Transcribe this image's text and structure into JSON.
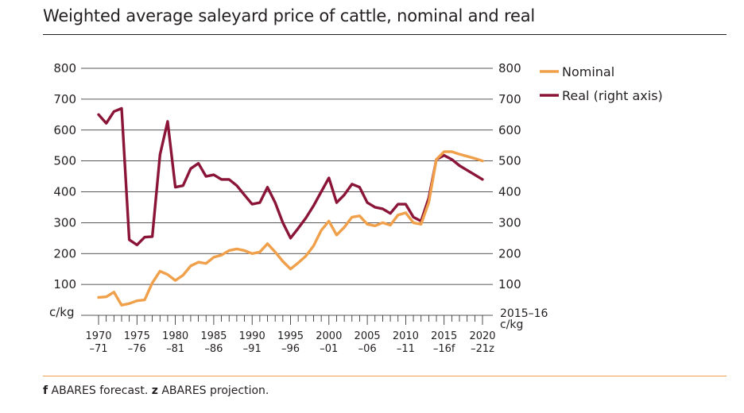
{
  "title": "Weighted average saleyard price of cattle, nominal and real",
  "footnote": {
    "f_mark": "f",
    "f_text": " ABARES forecast. ",
    "z_mark": "z",
    "z_text": " ABARES projection."
  },
  "colors": {
    "nominal": "#f0a04b",
    "real": "#8b1538",
    "grid": "#231f20"
  },
  "chart_data": {
    "type": "line",
    "title": "Weighted average saleyard price of cattle, nominal and real",
    "ylim": [
      0,
      800
    ],
    "y_ticks": [
      100,
      200,
      300,
      400,
      500,
      600,
      700,
      800
    ],
    "y_ticks_right": [
      100,
      200,
      300,
      400,
      500,
      600,
      700,
      800
    ],
    "y_unit_left": "c/kg",
    "y_unit_right_line1": "2015–16",
    "y_unit_right_line2": "c/kg",
    "grid": true,
    "legend_position": "top-right",
    "x_tick_labels": [
      {
        "year": 1970,
        "top": "1970",
        "bottom": "–71"
      },
      {
        "year": 1975,
        "top": "1975",
        "bottom": "–76"
      },
      {
        "year": 1980,
        "top": "1980",
        "bottom": "–81"
      },
      {
        "year": 1985,
        "top": "1985",
        "bottom": "–86"
      },
      {
        "year": 1990,
        "top": "1990",
        "bottom": "–91"
      },
      {
        "year": 1995,
        "top": "1995",
        "bottom": "–96"
      },
      {
        "year": 2000,
        "top": "2000",
        "bottom": "–01"
      },
      {
        "year": 2005,
        "top": "2005",
        "bottom": "–06"
      },
      {
        "year": 2010,
        "top": "2010",
        "bottom": "–11"
      },
      {
        "year": 2015,
        "top": "2015",
        "bottom": "–16f"
      },
      {
        "year": 2020,
        "top": "2020",
        "bottom": "–21z"
      }
    ],
    "x": [
      1970,
      1971,
      1972,
      1973,
      1974,
      1975,
      1976,
      1977,
      1978,
      1979,
      1980,
      1981,
      1982,
      1983,
      1984,
      1985,
      1986,
      1987,
      1988,
      1989,
      1990,
      1991,
      1992,
      1993,
      1994,
      1995,
      1996,
      1997,
      1998,
      1999,
      2000,
      2001,
      2002,
      2003,
      2004,
      2005,
      2006,
      2007,
      2008,
      2009,
      2010,
      2011,
      2012,
      2013,
      2014,
      2015,
      2016,
      2017,
      2018,
      2019,
      2020
    ],
    "series": [
      {
        "name": "Nominal",
        "color": "#f0a04b",
        "axis": "left",
        "values": [
          58,
          60,
          75,
          33,
          38,
          47,
          50,
          105,
          143,
          132,
          113,
          130,
          160,
          172,
          168,
          188,
          195,
          210,
          215,
          210,
          200,
          205,
          232,
          205,
          175,
          150,
          170,
          192,
          225,
          275,
          305,
          260,
          285,
          318,
          322,
          295,
          290,
          300,
          292,
          325,
          332,
          300,
          295,
          365,
          505,
          530,
          530,
          522,
          515,
          508,
          500
        ]
      },
      {
        "name": "Real (right axis)",
        "color": "#8b1538",
        "axis": "right",
        "values": [
          650,
          622,
          660,
          670,
          245,
          228,
          253,
          255,
          520,
          628,
          415,
          420,
          475,
          492,
          450,
          455,
          440,
          440,
          420,
          390,
          360,
          365,
          415,
          365,
          300,
          250,
          282,
          315,
          355,
          400,
          445,
          365,
          390,
          425,
          415,
          365,
          350,
          345,
          330,
          360,
          360,
          318,
          305,
          380,
          505,
          518,
          505,
          485,
          470,
          455,
          440
        ]
      }
    ]
  }
}
